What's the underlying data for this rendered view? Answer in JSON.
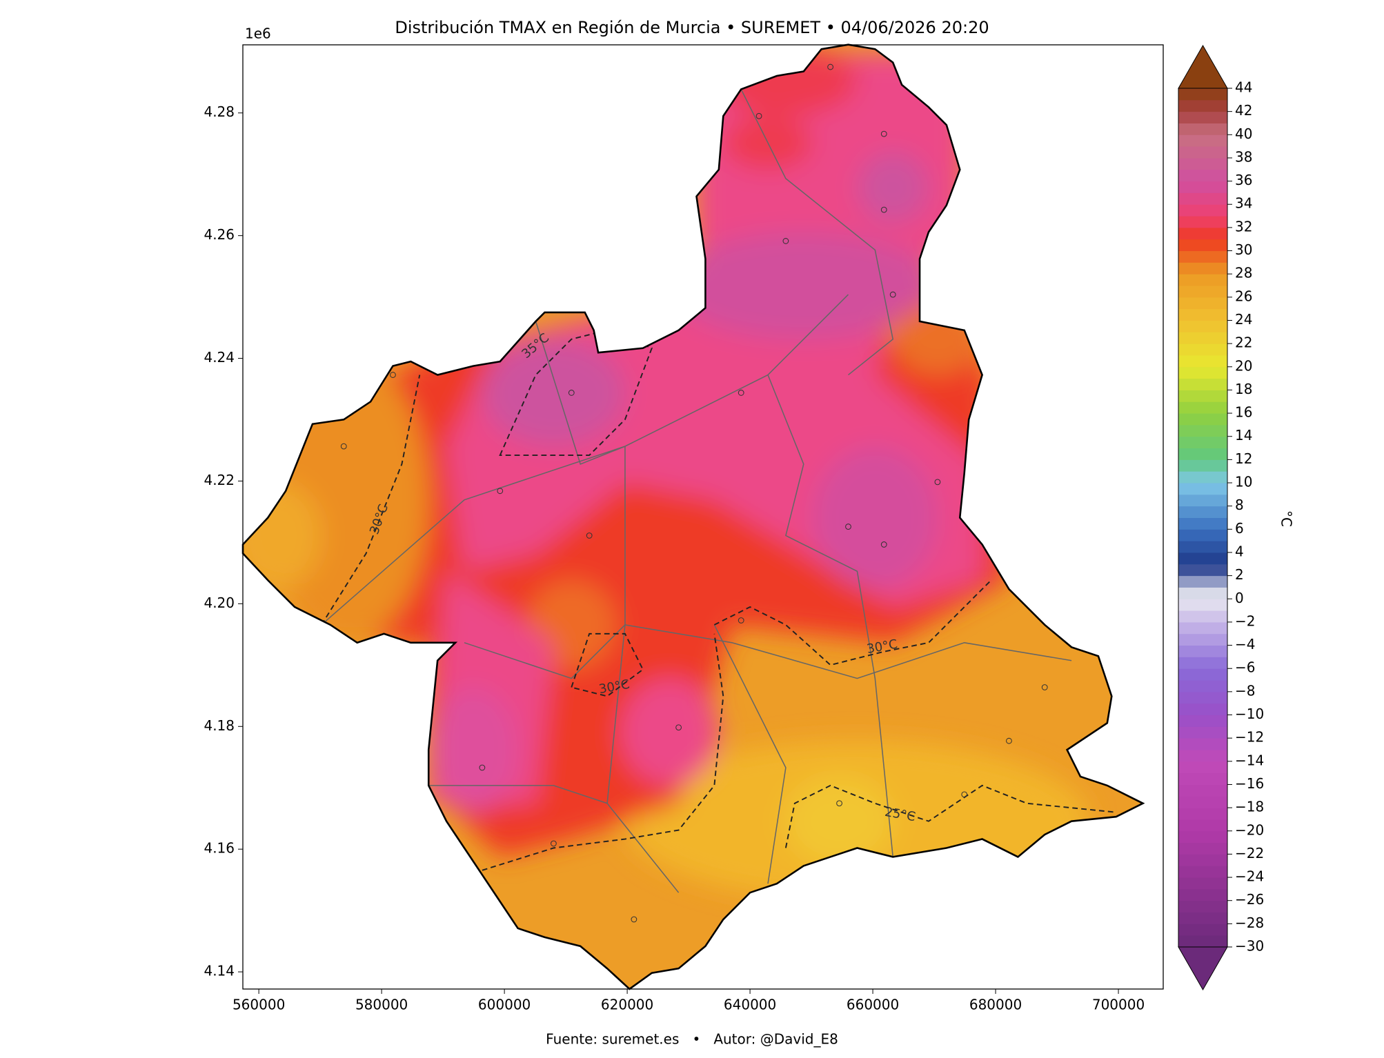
{
  "title": "Distribución TMAX en Región de Murcia • SUREMET • 04/06/2026 20:20",
  "footer": "Fuente: suremet.es   •   Autor: @David_E8",
  "chart_data": {
    "type": "contour",
    "xlim": [
      557400,
      707300
    ],
    "ylim": [
      4137200,
      4291100
    ],
    "xticks": [
      560000,
      580000,
      600000,
      620000,
      640000,
      660000,
      680000,
      700000
    ],
    "yticks": [
      {
        "value": 4140000,
        "label": "4.14"
      },
      {
        "value": 4160000,
        "label": "4.16"
      },
      {
        "value": 4180000,
        "label": "4.18"
      },
      {
        "value": 4200000,
        "label": "4.20"
      },
      {
        "value": 4220000,
        "label": "4.22"
      },
      {
        "value": 4240000,
        "label": "4.24"
      },
      {
        "value": 4260000,
        "label": "4.26"
      },
      {
        "value": 4280000,
        "label": "4.28"
      }
    ],
    "y_offset_label": "1e6",
    "contour_labels": [
      "35°C",
      "30°C",
      "30°C",
      "30°C",
      "25°C"
    ],
    "colorbar": {
      "label": "°C",
      "clim": [
        -30,
        44
      ],
      "ticks": [
        {
          "value": -30,
          "label": "−30"
        },
        {
          "value": -28,
          "label": "−28"
        },
        {
          "value": -26,
          "label": "−26"
        },
        {
          "value": -24,
          "label": "−24"
        },
        {
          "value": -22,
          "label": "−22"
        },
        {
          "value": -20,
          "label": "−20"
        },
        {
          "value": -18,
          "label": "−18"
        },
        {
          "value": -16,
          "label": "−16"
        },
        {
          "value": -14,
          "label": "−14"
        },
        {
          "value": -12,
          "label": "−12"
        },
        {
          "value": -10,
          "label": "−10"
        },
        {
          "value": -8,
          "label": "−8"
        },
        {
          "value": -6,
          "label": "−6"
        },
        {
          "value": -4,
          "label": "−4"
        },
        {
          "value": -2,
          "label": "−2"
        },
        0,
        2,
        4,
        6,
        8,
        10,
        12,
        14,
        16,
        18,
        20,
        22,
        24,
        26,
        28,
        30,
        32,
        34,
        36,
        38,
        40,
        42,
        44
      ],
      "colormap": [
        [
          -30,
          "#6b2a7a"
        ],
        [
          -20,
          "#b03aa8"
        ],
        [
          -14,
          "#c04ab8"
        ],
        [
          -10,
          "#9a50c8"
        ],
        [
          -6,
          "#8a6ad8"
        ],
        [
          -2,
          "#c8b8e8"
        ],
        [
          0,
          "#e8e8f0"
        ],
        [
          1,
          "#c8cce0"
        ],
        [
          2,
          "#5a6aaa"
        ],
        [
          3,
          "#203a8a"
        ],
        [
          6,
          "#3a70c0"
        ],
        [
          10,
          "#80c8e8"
        ],
        [
          12,
          "#60c880"
        ],
        [
          16,
          "#90d040"
        ],
        [
          20,
          "#e8e830"
        ],
        [
          24,
          "#f0c030"
        ],
        [
          28,
          "#ec9a24"
        ],
        [
          31,
          "#ee3a20"
        ],
        [
          33,
          "#ee4070"
        ],
        [
          36,
          "#d050a0"
        ],
        [
          40,
          "#c87080"
        ],
        [
          42,
          "#a84040"
        ],
        [
          44,
          "#8a4010"
        ]
      ]
    }
  }
}
